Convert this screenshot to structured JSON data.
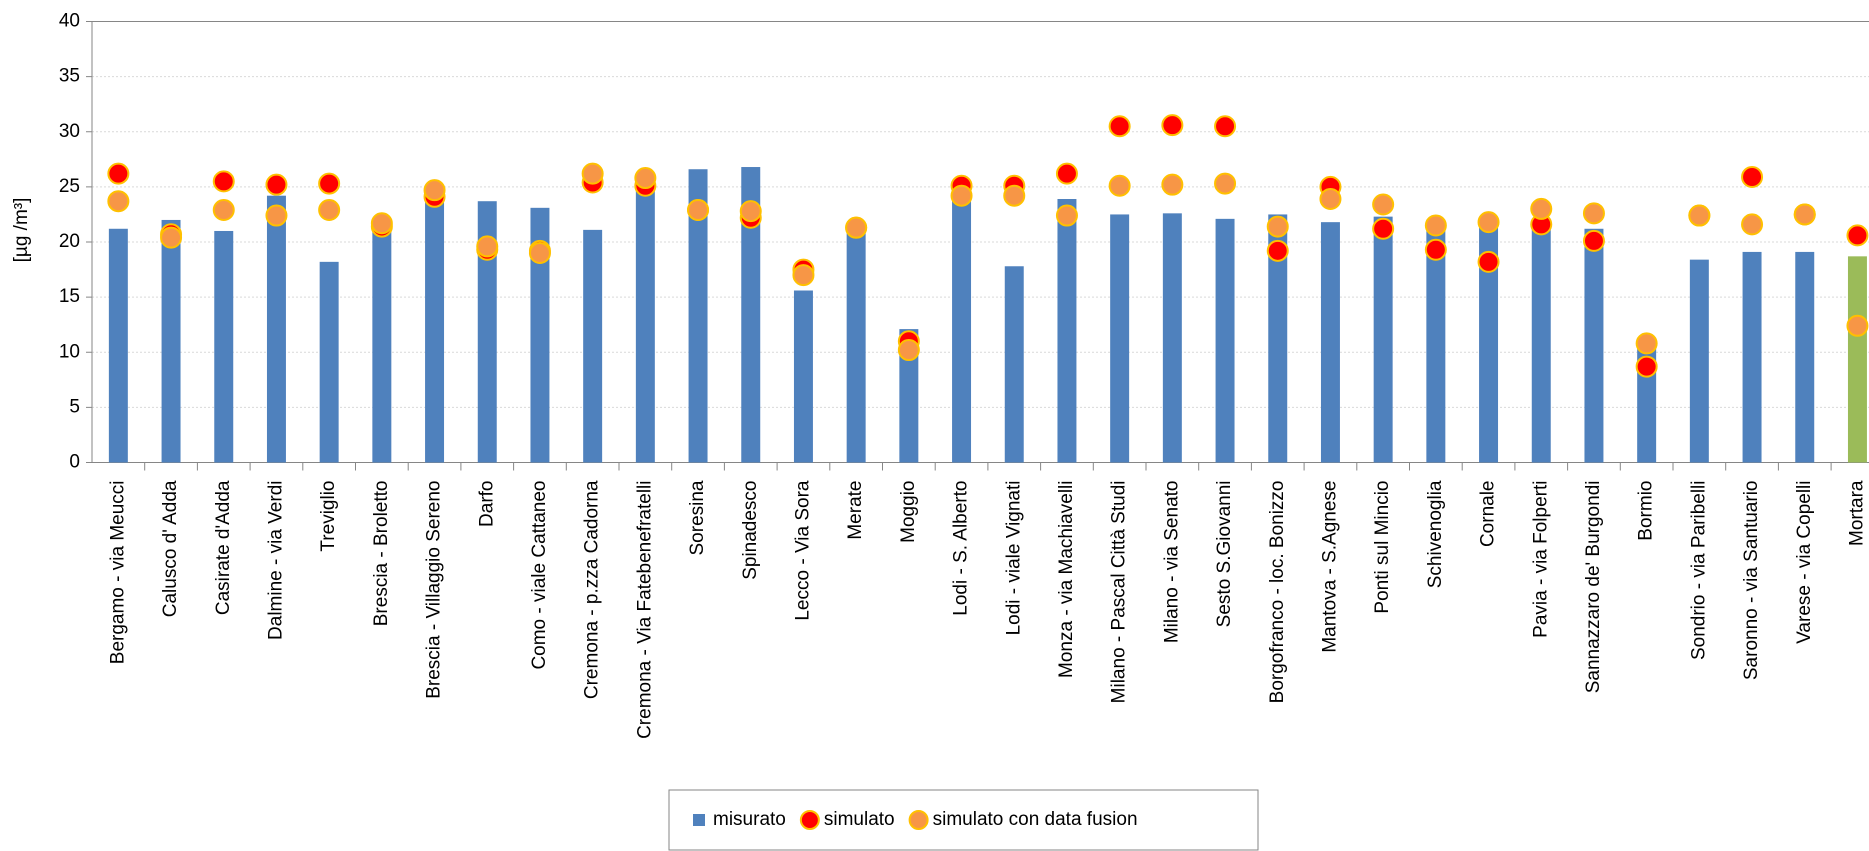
{
  "chart_data": {
    "type": "bar",
    "y_label": "[µg /m³]",
    "categories": [
      "Bergamo - via Meucci",
      "Calusco d' Adda",
      "Casirate d'Adda",
      "Dalmine - via Verdi",
      "Treviglio",
      "Brescia - Broletto",
      "Brescia - Villaggio Sereno",
      "Darfo",
      "Como - viale Cattaneo",
      "Cremona - p.zza Cadorna",
      "Cremona - Via Fatebenefratelli",
      "Soresina",
      "Spinadesco",
      "Lecco - Via Sora",
      "Merate",
      "Moggio",
      "Lodi - S. Alberto",
      "Lodi - viale Vignati",
      "Monza - via Machiavelli",
      "Milano - Pascal Città Studi",
      "Milano - via Senato",
      "Sesto S.Giovanni",
      "Borgofranco - loc. Bonizzo",
      "Mantova - S.Agnese",
      "Ponti sul Mincio",
      "Schivenoglia",
      "Cornale",
      "Pavia - via Folperti",
      "Sannazzaro de' Burgondi",
      "Bormio",
      "Sondrio - via Paribelli",
      "Saronno - via Santuario",
      "Varese - via Copelli",
      "Mortara"
    ],
    "series": [
      {
        "name": "misurato",
        "kind": "bar",
        "color": "#4f81bd",
        "colors": [
          "#4f81bd",
          "#4f81bd",
          "#4f81bd",
          "#4f81bd",
          "#4f81bd",
          "#4f81bd",
          "#4f81bd",
          "#4f81bd",
          "#4f81bd",
          "#4f81bd",
          "#4f81bd",
          "#4f81bd",
          "#4f81bd",
          "#4f81bd",
          "#4f81bd",
          "#4f81bd",
          "#4f81bd",
          "#4f81bd",
          "#4f81bd",
          "#4f81bd",
          "#4f81bd",
          "#4f81bd",
          "#4f81bd",
          "#4f81bd",
          "#4f81bd",
          "#4f81bd",
          "#4f81bd",
          "#4f81bd",
          "#4f81bd",
          "#4f81bd",
          "#4f81bd",
          "#4f81bd",
          "#4f81bd",
          "#9bbb59"
        ],
        "values": [
          21.2,
          22.0,
          21.0,
          24.2,
          18.2,
          21.8,
          24.6,
          23.7,
          23.1,
          21.1,
          25.2,
          26.6,
          26.8,
          15.6,
          21.5,
          12.1,
          24.2,
          17.8,
          23.9,
          22.5,
          22.6,
          22.1,
          22.5,
          21.8,
          22.3,
          21.6,
          22.1,
          21.8,
          21.2,
          10.5,
          18.4,
          19.1,
          19.1,
          18.7
        ]
      },
      {
        "name": "simulato",
        "kind": "scatter",
        "color": "#ff0000",
        "edge": "#ffc000",
        "values": [
          26.2,
          20.7,
          25.5,
          25.2,
          25.3,
          21.4,
          24.1,
          19.3,
          19.2,
          25.4,
          25.1,
          22.9,
          22.2,
          17.5,
          21.3,
          11.0,
          25.1,
          25.1,
          26.2,
          30.5,
          30.6,
          30.5,
          19.2,
          25.0,
          21.2,
          19.3,
          18.2,
          21.6,
          20.1,
          8.7,
          22.4,
          25.9,
          22.5,
          20.6
        ]
      },
      {
        "name": "simulato con data fusion",
        "kind": "scatter",
        "color": "#f79646",
        "edge": "#ffc000",
        "values": [
          23.7,
          20.4,
          22.9,
          22.4,
          22.9,
          21.7,
          24.7,
          19.6,
          19.0,
          26.2,
          25.8,
          22.9,
          22.8,
          17.0,
          21.3,
          10.2,
          24.2,
          24.2,
          22.4,
          25.1,
          25.2,
          25.3,
          21.4,
          23.9,
          23.4,
          21.5,
          21.8,
          23.0,
          22.6,
          10.8,
          22.4,
          21.6,
          22.5,
          12.4
        ]
      }
    ],
    "ylim": [
      0,
      40
    ],
    "yticks": [
      0,
      5,
      10,
      15,
      20,
      25,
      30,
      35,
      40
    ],
    "grid": true,
    "legend": "bottom"
  }
}
